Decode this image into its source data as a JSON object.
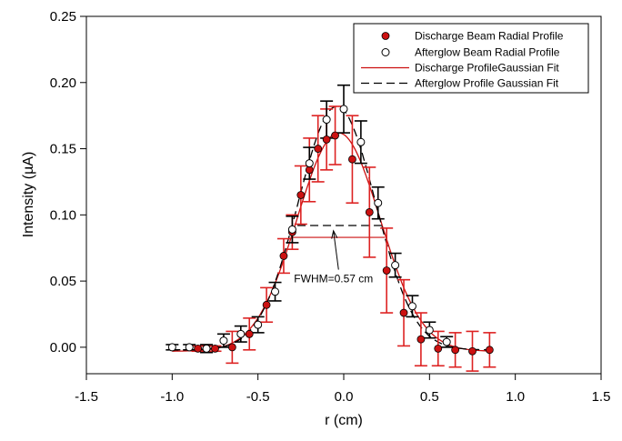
{
  "chart_data": {
    "type": "scatter",
    "title": "",
    "xlabel": "r (cm)",
    "ylabel": "Intensity (µA)",
    "xlim": [
      -1.5,
      1.5
    ],
    "ylim": [
      -0.02,
      0.25
    ],
    "x_ticks": [
      -1.5,
      -1.0,
      -0.5,
      0.0,
      0.5,
      1.0,
      1.5
    ],
    "x_tick_labels": [
      "-1.5",
      "-1.0",
      "-0.5",
      "0.0",
      "0.5",
      "1.0",
      "1.5"
    ],
    "y_ticks": [
      0.0,
      0.05,
      0.1,
      0.15,
      0.2,
      0.25
    ],
    "y_tick_labels": [
      "0.00",
      "0.05",
      "0.10",
      "0.15",
      "0.20",
      "0.25"
    ],
    "grid": false,
    "legend_position": "top-right",
    "series": [
      {
        "name": "Discharge Beam Radial Profile",
        "kind": "points",
        "marker": "filled-circle",
        "color": "#cc1111",
        "error_color": "#dd2222",
        "x": [
          -0.85,
          -0.8,
          -0.75,
          -0.65,
          -0.55,
          -0.45,
          -0.35,
          -0.3,
          -0.25,
          -0.2,
          -0.15,
          -0.1,
          -0.05,
          0.05,
          0.15,
          0.25,
          0.35,
          0.45,
          0.55,
          0.65,
          0.75,
          0.85
        ],
        "y": [
          -0.001,
          -0.001,
          -0.001,
          0.0,
          0.01,
          0.032,
          0.069,
          0.087,
          0.115,
          0.134,
          0.15,
          0.157,
          0.16,
          0.142,
          0.102,
          0.058,
          0.026,
          0.006,
          -0.001,
          -0.002,
          -0.003,
          -0.002
        ],
        "yerr": [
          0.002,
          0.002,
          0.002,
          0.012,
          0.012,
          0.013,
          0.013,
          0.013,
          0.022,
          0.024,
          0.025,
          0.023,
          0.022,
          0.033,
          0.034,
          0.032,
          0.025,
          0.02,
          0.013,
          0.013,
          0.015,
          0.013
        ]
      },
      {
        "name": "Afterglow Beam Radial Profile",
        "kind": "points",
        "marker": "open-circle",
        "color": "#000000",
        "error_color": "#000000",
        "x": [
          -1.0,
          -0.9,
          -0.8,
          -0.7,
          -0.6,
          -0.5,
          -0.4,
          -0.3,
          -0.2,
          -0.1,
          0.0,
          0.1,
          0.2,
          0.3,
          0.4,
          0.5,
          0.6
        ],
        "y": [
          0.0,
          0.0,
          -0.001,
          0.005,
          0.01,
          0.017,
          0.042,
          0.089,
          0.139,
          0.172,
          0.18,
          0.155,
          0.109,
          0.062,
          0.031,
          0.013,
          0.004
        ],
        "yerr": [
          0.002,
          0.002,
          0.003,
          0.005,
          0.006,
          0.006,
          0.007,
          0.01,
          0.012,
          0.014,
          0.018,
          0.016,
          0.012,
          0.009,
          0.008,
          0.006,
          0.004
        ]
      },
      {
        "name": "Discharge ProfileGaussian Fit",
        "kind": "line",
        "line_style": "solid",
        "color": "#cc1111",
        "center": -0.03,
        "fwhm": 0.57,
        "amplitude": 0.165,
        "offset": -0.003
      },
      {
        "name": "Afterglow Profile Gaussian Fit",
        "kind": "line",
        "line_style": "dashed",
        "color": "#000000",
        "center": -0.04,
        "fwhm": 0.53,
        "amplitude": 0.184,
        "offset": -0.002
      }
    ],
    "annotations": [
      {
        "text": "FWHM=0.57 cm",
        "text_x": -0.29,
        "text_y": 0.049,
        "arrow_to_x": -0.06,
        "arrow_to_y": 0.088
      }
    ],
    "fwhm_markers": [
      {
        "color": "#cc1111",
        "y": 0.083,
        "x_start": -0.3,
        "x_end": 0.24
      },
      {
        "color": "#000000",
        "y": 0.092,
        "x_start": -0.27,
        "x_end": 0.23
      }
    ]
  }
}
